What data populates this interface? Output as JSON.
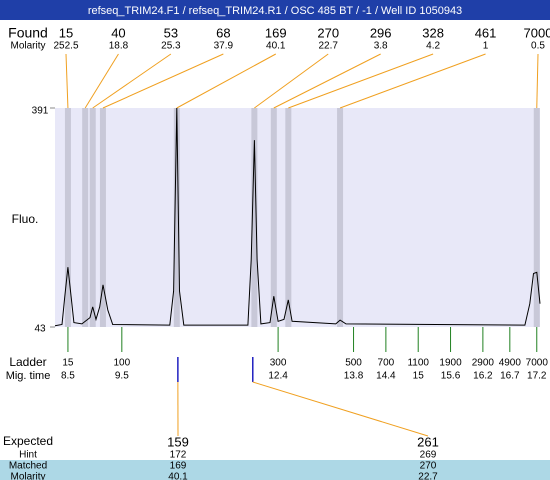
{
  "chart_data": {
    "type": "electropherogram",
    "title": "refseq_TRIM24.F1 / refseq_TRIM24.R1 / OSC 485 BT / -1 / Well ID 1050943",
    "y_label": "Fluo.",
    "ylim": [
      43,
      391
    ],
    "yticks": [
      43,
      391
    ],
    "xlim": [
      8.26,
      17.26
    ],
    "trace": {
      "color": "#000000",
      "x": [
        8.26,
        8.39,
        8.44,
        8.5,
        8.56,
        8.61,
        8.76,
        8.91,
        8.96,
        9.02,
        9.09,
        9.15,
        9.24,
        9.33,
        10.39,
        10.46,
        10.52,
        10.57,
        10.65,
        11.84,
        11.9,
        11.96,
        12.01,
        12.08,
        12.25,
        12.32,
        12.4,
        12.51,
        12.59,
        12.66,
        13.47,
        13.55,
        13.66,
        16.98,
        17.07,
        17.14,
        17.2,
        17.26
      ],
      "values": [
        45,
        47,
        90,
        138,
        90,
        50,
        48,
        58,
        75,
        55,
        75,
        110,
        70,
        47,
        46,
        100,
        391,
        100,
        46,
        46,
        150,
        340,
        150,
        48,
        50,
        92,
        52,
        55,
        86,
        52,
        48,
        54,
        48,
        46,
        80,
        128,
        130,
        80
      ]
    },
    "found": {
      "label": "Found",
      "molarity_label": "Molarity",
      "line_color": "#f0a020",
      "band_color": "#c8c8d8",
      "sizes": [
        15,
        40,
        53,
        68,
        169,
        270,
        296,
        328,
        461,
        7000
      ],
      "molarity": [
        252.5,
        18.8,
        25.3,
        37.9,
        40.1,
        22.7,
        3.8,
        4.2,
        1,
        0.5
      ],
      "times": [
        8.5,
        8.82,
        8.96,
        9.15,
        10.52,
        11.96,
        12.32,
        12.59,
        13.55,
        17.2
      ]
    },
    "ladder": {
      "label": "Ladder",
      "time_label": "Mig. time",
      "color": "#208020",
      "sizes": [
        15,
        100,
        300,
        500,
        700,
        1100,
        1900,
        2900,
        4900,
        7000
      ],
      "times": [
        8.5,
        9.5,
        12.4,
        13.8,
        14.4,
        15,
        15.6,
        16.2,
        16.7,
        17.2
      ]
    },
    "expected": {
      "label": "Expected",
      "hint_label": "Hint",
      "matched_label": "Matched",
      "molarity_label": "Molarity",
      "columns": [
        {
          "expected": 159,
          "hint": 172,
          "matched": 169,
          "molarity": 40.1,
          "time": 10.54
        },
        {
          "expected": 261,
          "hint": 269,
          "matched": 270,
          "molarity": 22.7,
          "time": 11.93
        }
      ]
    }
  }
}
